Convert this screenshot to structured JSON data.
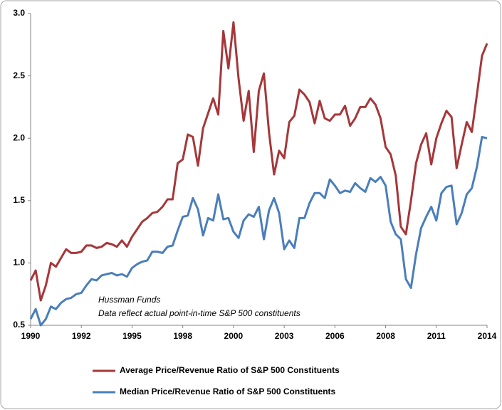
{
  "chart_data": {
    "type": "line",
    "categories": [
      "1990",
      null,
      null,
      null,
      null,
      null,
      null,
      null,
      null,
      null,
      "1992",
      null,
      null,
      null,
      null,
      null,
      null,
      null,
      null,
      null,
      "1995",
      null,
      null,
      null,
      null,
      null,
      null,
      null,
      null,
      null,
      "1998",
      null,
      null,
      null,
      null,
      null,
      null,
      null,
      null,
      null,
      "2000",
      null,
      null,
      null,
      null,
      null,
      null,
      null,
      null,
      null,
      "2003",
      null,
      null,
      null,
      null,
      null,
      null,
      null,
      null,
      null,
      "2006",
      null,
      null,
      null,
      null,
      null,
      null,
      null,
      null,
      null,
      "2008",
      null,
      null,
      null,
      null,
      null,
      null,
      null,
      null,
      null,
      "2011",
      null,
      null,
      null,
      null,
      null,
      null,
      null,
      null,
      null,
      "2014"
    ],
    "series": [
      {
        "name": "Average Price/Revenue Ratio of S&P 500 Constituents",
        "color": "#a5373a",
        "values": [
          0.86,
          0.94,
          0.7,
          0.82,
          1.0,
          0.97,
          1.04,
          1.11,
          1.08,
          1.08,
          1.09,
          1.14,
          1.14,
          1.12,
          1.13,
          1.16,
          1.15,
          1.13,
          1.18,
          1.13,
          1.21,
          1.27,
          1.33,
          1.36,
          1.4,
          1.41,
          1.45,
          1.51,
          1.51,
          1.8,
          1.83,
          2.03,
          2.01,
          1.78,
          2.08,
          2.2,
          2.32,
          2.19,
          2.86,
          2.56,
          2.93,
          2.48,
          2.14,
          2.38,
          1.89,
          2.38,
          2.52,
          2.05,
          1.71,
          1.9,
          1.84,
          2.13,
          2.18,
          2.39,
          2.35,
          2.29,
          2.12,
          2.3,
          2.16,
          2.14,
          2.19,
          2.19,
          2.26,
          2.1,
          2.16,
          2.25,
          2.25,
          2.32,
          2.27,
          2.16,
          1.93,
          1.87,
          1.7,
          1.29,
          1.23,
          1.5,
          1.8,
          1.95,
          2.04,
          1.79,
          2.0,
          2.12,
          2.22,
          2.17,
          1.76,
          1.95,
          2.13,
          2.05,
          2.35,
          2.66,
          2.76
        ]
      },
      {
        "name": "Median Price/Revenue Ratio of S&P 500 Constituents",
        "color": "#4a7ebb",
        "values": [
          0.55,
          0.63,
          0.5,
          0.55,
          0.65,
          0.63,
          0.68,
          0.71,
          0.72,
          0.75,
          0.76,
          0.82,
          0.87,
          0.86,
          0.9,
          0.91,
          0.92,
          0.9,
          0.91,
          0.89,
          0.96,
          0.99,
          1.01,
          1.02,
          1.09,
          1.09,
          1.08,
          1.13,
          1.14,
          1.26,
          1.37,
          1.38,
          1.52,
          1.43,
          1.22,
          1.36,
          1.34,
          1.55,
          1.35,
          1.36,
          1.25,
          1.2,
          1.34,
          1.39,
          1.37,
          1.45,
          1.19,
          1.42,
          1.52,
          1.4,
          1.11,
          1.18,
          1.12,
          1.36,
          1.36,
          1.48,
          1.56,
          1.56,
          1.52,
          1.67,
          1.62,
          1.56,
          1.58,
          1.57,
          1.64,
          1.6,
          1.57,
          1.68,
          1.65,
          1.69,
          1.62,
          1.33,
          1.23,
          1.19,
          0.87,
          0.8,
          1.07,
          1.28,
          1.37,
          1.45,
          1.34,
          1.56,
          1.61,
          1.62,
          1.31,
          1.4,
          1.55,
          1.6,
          1.77,
          2.01,
          2.0
        ]
      }
    ],
    "annotations": [
      "Hussman Funds",
      "Data reflect actual point-in-time S&P 500 constituents"
    ],
    "ylim": [
      0.5,
      3.0
    ],
    "yticks": [
      0.5,
      {
        "value": 1,
        "label": "1.0"
      },
      1.5,
      {
        "value": 2,
        "label": "2.0"
      },
      2.5,
      {
        "value": 3,
        "label": "3.0"
      }
    ],
    "grid": false,
    "legend": "bottom"
  }
}
